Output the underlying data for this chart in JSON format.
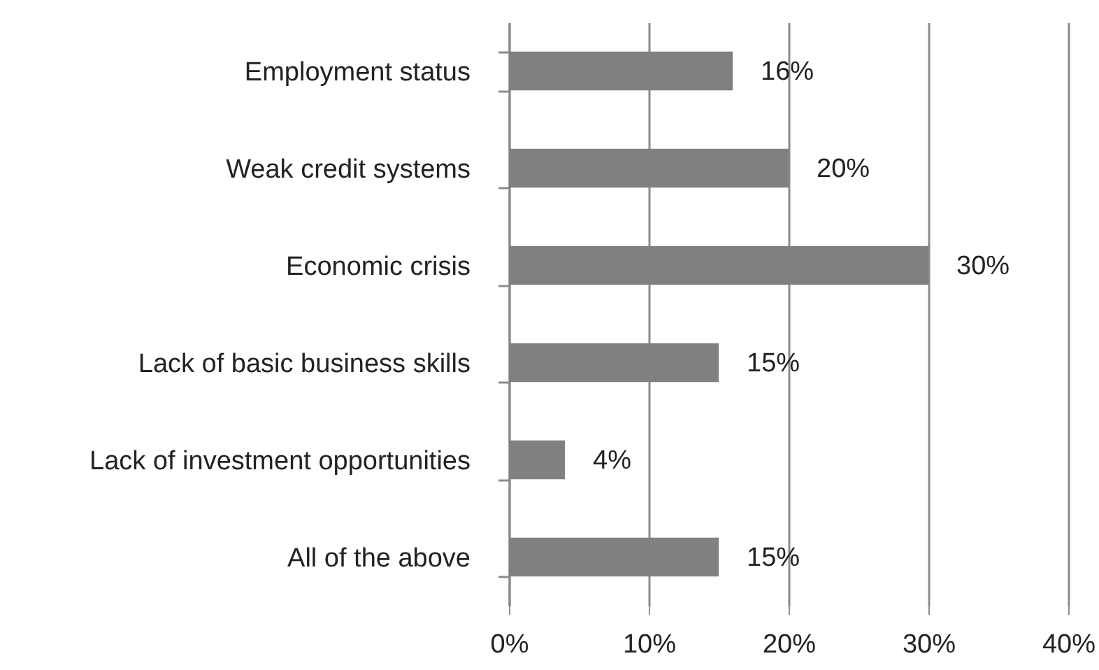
{
  "chart_data": {
    "type": "bar",
    "orientation": "horizontal",
    "categories": [
      "Employment status",
      "Weak credit systems",
      "Economic crisis",
      "Lack of basic business skills",
      "Lack of investment opportunities",
      "All of the above"
    ],
    "values": [
      16,
      20,
      30,
      15,
      4,
      15
    ],
    "value_labels": [
      "16%",
      "20%",
      "30%",
      "15%",
      "4%",
      "15%"
    ],
    "color": "#808080",
    "xlim": [
      0,
      40
    ],
    "xticks": [
      {
        "value": 0,
        "label": "0%"
      },
      {
        "value": 10,
        "label": "10%"
      },
      {
        "value": 20,
        "label": "20%"
      },
      {
        "value": 30,
        "label": "30%"
      },
      {
        "value": 40,
        "label": "40%"
      }
    ],
    "grid": "x"
  }
}
